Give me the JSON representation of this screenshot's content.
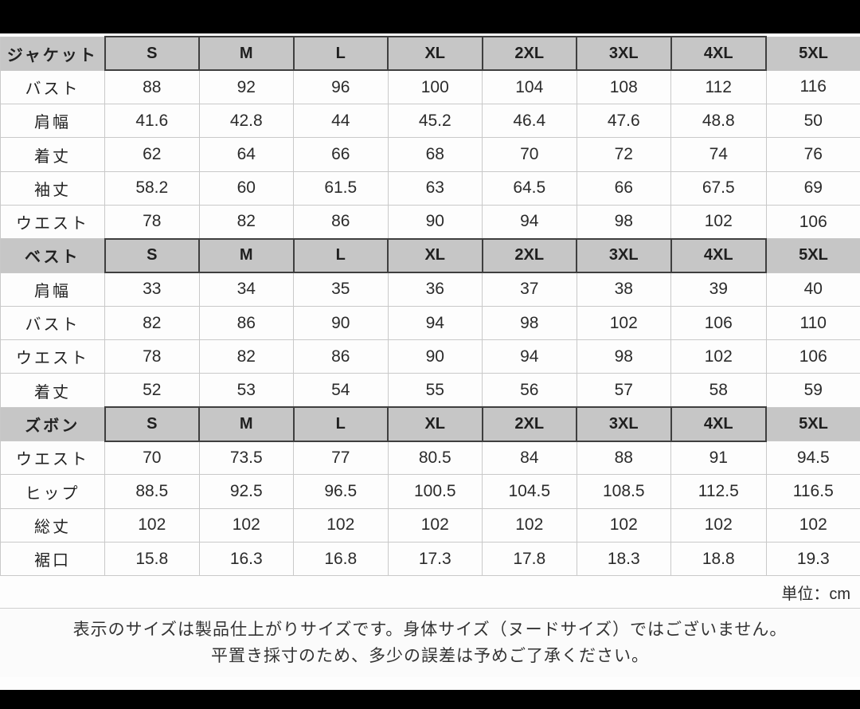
{
  "sizes": [
    "S",
    "M",
    "L",
    "XL",
    "2XL",
    "3XL",
    "4XL",
    "5XL"
  ],
  "sections": [
    {
      "name": "ジャケット",
      "rows": [
        {
          "label": "バスト",
          "values": [
            "88",
            "92",
            "96",
            "100",
            "104",
            "108",
            "112",
            "116"
          ]
        },
        {
          "label": "肩幅",
          "values": [
            "41.6",
            "42.8",
            "44",
            "45.2",
            "46.4",
            "47.6",
            "48.8",
            "50"
          ]
        },
        {
          "label": "着丈",
          "values": [
            "62",
            "64",
            "66",
            "68",
            "70",
            "72",
            "74",
            "76"
          ]
        },
        {
          "label": "袖丈",
          "values": [
            "58.2",
            "60",
            "61.5",
            "63",
            "64.5",
            "66",
            "67.5",
            "69"
          ]
        },
        {
          "label": "ウエスト",
          "values": [
            "78",
            "82",
            "86",
            "90",
            "94",
            "98",
            "102",
            "106"
          ]
        }
      ]
    },
    {
      "name": "ベスト",
      "rows": [
        {
          "label": "肩幅",
          "values": [
            "33",
            "34",
            "35",
            "36",
            "37",
            "38",
            "39",
            "40"
          ]
        },
        {
          "label": "バスト",
          "values": [
            "82",
            "86",
            "90",
            "94",
            "98",
            "102",
            "106",
            "110"
          ]
        },
        {
          "label": "ウエスト",
          "values": [
            "78",
            "82",
            "86",
            "90",
            "94",
            "98",
            "102",
            "106"
          ]
        },
        {
          "label": "着丈",
          "values": [
            "52",
            "53",
            "54",
            "55",
            "56",
            "57",
            "58",
            "59"
          ]
        }
      ]
    },
    {
      "name": "ズボン",
      "rows": [
        {
          "label": "ウエスト",
          "values": [
            "70",
            "73.5",
            "77",
            "80.5",
            "84",
            "88",
            "91",
            "94.5"
          ]
        },
        {
          "label": "ヒップ",
          "values": [
            "88.5",
            "92.5",
            "96.5",
            "100.5",
            "104.5",
            "108.5",
            "112.5",
            "116.5"
          ]
        },
        {
          "label": "総丈",
          "values": [
            "102",
            "102",
            "102",
            "102",
            "102",
            "102",
            "102",
            "102"
          ]
        },
        {
          "label": "裾口",
          "values": [
            "15.8",
            "16.3",
            "16.8",
            "17.3",
            "17.8",
            "18.3",
            "18.8",
            "19.3"
          ]
        }
      ]
    }
  ],
  "unit_label": "単位：cm",
  "notes": [
    "表示のサイズは製品仕上がりサイズです。身体サイズ（ヌードサイズ）ではございません。",
    "平置き採寸のため、多少の誤差は予めご了承ください。"
  ],
  "colors": {
    "section_header_bg": "#c6c6c6",
    "grid_line": "#c9c9c9",
    "section_box_border": "#3f3f3f",
    "text": "#2b2b2b",
    "letterbox": "#000000",
    "page_bg": "#fdfdfd"
  }
}
